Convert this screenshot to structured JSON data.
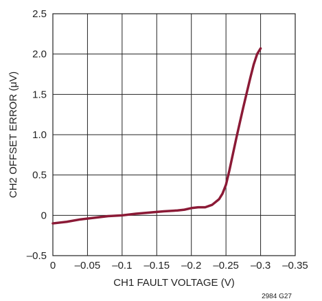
{
  "chart_data": {
    "type": "line",
    "title": "",
    "xlabel": "CH1 FAULT VOLTAGE (V)",
    "ylabel": "CH2 OFFSET ERROR (μV)",
    "xlim": [
      0,
      -0.35
    ],
    "ylim": [
      -0.5,
      2.5
    ],
    "x_ticks": [
      0,
      -0.05,
      -0.1,
      -0.15,
      -0.2,
      -0.25,
      -0.3,
      -0.35
    ],
    "x_tick_labels": [
      "0",
      "–0.05",
      "–0.1",
      "–0.15",
      "–0.2",
      "–0.25",
      "–0.3",
      "–0.35"
    ],
    "y_ticks": [
      -0.5,
      0,
      0.5,
      1.0,
      1.5,
      2.0,
      2.5
    ],
    "y_tick_labels": [
      "–0.5",
      "0",
      "0.5",
      "1.0",
      "1.5",
      "2.0",
      "2.5"
    ],
    "grid": true,
    "line_color": "#8b1a36",
    "series": [
      {
        "x": [
          0,
          -0.02,
          -0.04,
          -0.06,
          -0.08,
          -0.1,
          -0.12,
          -0.14,
          -0.16,
          -0.18,
          -0.19,
          -0.2,
          -0.21,
          -0.22,
          -0.23,
          -0.24,
          -0.245,
          -0.25,
          -0.255,
          -0.26,
          -0.265,
          -0.27,
          -0.275,
          -0.28,
          -0.285,
          -0.29,
          -0.295,
          -0.3
        ],
        "y": [
          -0.1,
          -0.08,
          -0.05,
          -0.03,
          -0.01,
          0.0,
          0.02,
          0.035,
          0.05,
          0.06,
          0.07,
          0.09,
          0.1,
          0.1,
          0.13,
          0.2,
          0.27,
          0.38,
          0.56,
          0.76,
          0.96,
          1.15,
          1.34,
          1.52,
          1.7,
          1.87,
          2.0,
          2.07
        ]
      }
    ]
  },
  "figure_id": "2984 G27"
}
